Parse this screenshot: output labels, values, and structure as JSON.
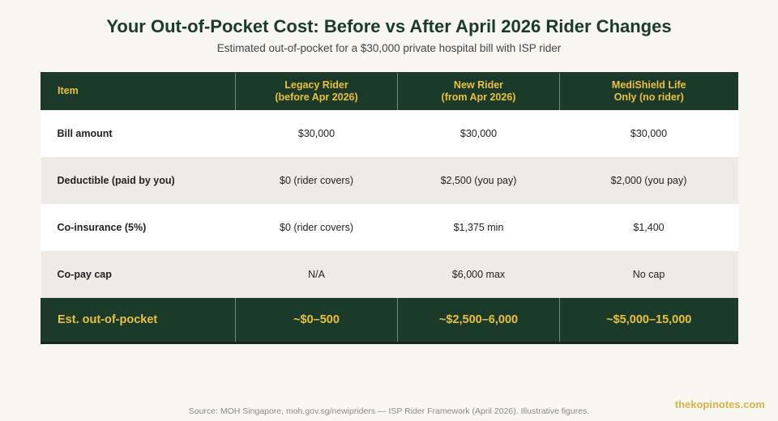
{
  "title": "Your Out-of-Pocket Cost: Before vs After April 2026 Rider Changes",
  "subtitle": "Estimated out-of-pocket for a $30,000 private hospital bill with ISP rider",
  "colors": {
    "background": "#f8f7f2",
    "header_bg": "#1c3a2a",
    "accent_gold": "#e9c13e",
    "row_alt": "#efebe4"
  },
  "chart_data": {
    "type": "table",
    "columns": [
      {
        "lines": [
          "Item"
        ]
      },
      {
        "lines": [
          "Legacy Rider",
          "(before Apr 2026)"
        ]
      },
      {
        "lines": [
          "New Rider",
          "(from Apr 2026)"
        ]
      },
      {
        "lines": [
          "MediShield Life",
          "Only (no rider)"
        ]
      }
    ],
    "rows": [
      {
        "label": "Bill amount",
        "values": [
          "$30,000",
          "$30,000",
          "$30,000"
        ]
      },
      {
        "label": "Deductible (paid by you)",
        "values": [
          "$0 (rider covers)",
          "$2,500 (you pay)",
          "$2,000 (you pay)"
        ]
      },
      {
        "label": "Co-insurance (5%)",
        "values": [
          "$0 (rider covers)",
          "$1,375 min",
          "$1,400"
        ]
      },
      {
        "label": "Co-pay cap",
        "values": [
          "N/A",
          "$6,000 max",
          "No cap"
        ]
      }
    ],
    "total_row": {
      "label": "Est. out-of-pocket",
      "values": [
        "~$0–500",
        "~$2,500–6,000",
        "~$5,000–15,000"
      ]
    }
  },
  "footer": {
    "source": "Source: MOH Singapore, moh.gov.sg/newipriders — ISP Rider Framework (April 2026). Illustrative figures.",
    "brand": "thekopinotes.com"
  }
}
